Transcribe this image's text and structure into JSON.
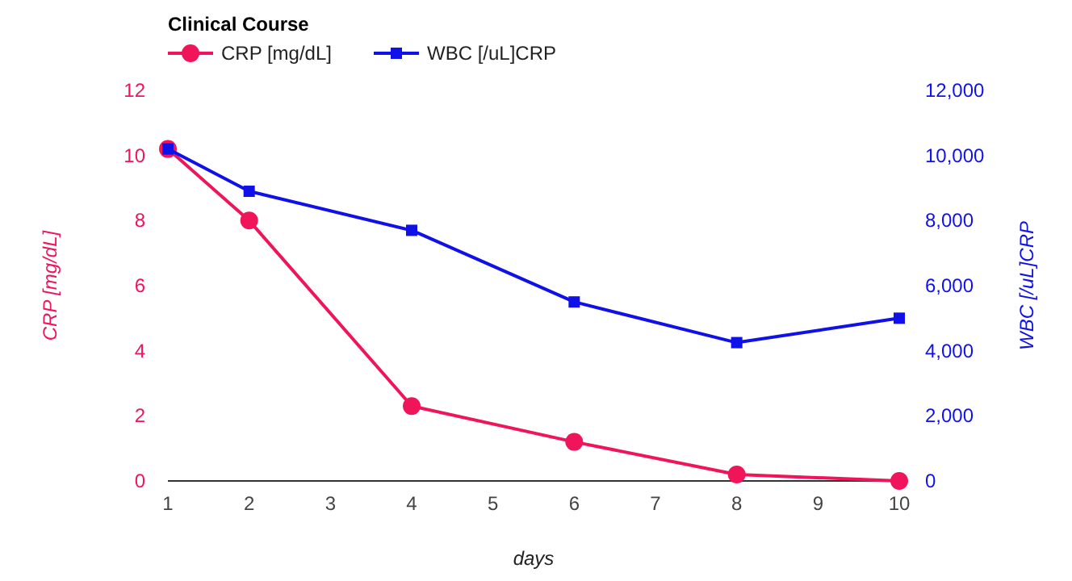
{
  "chart_data": {
    "type": "line",
    "title": "Clinical Course",
    "xlabel": "days",
    "ylabel": "CRP [mg/dL]",
    "y2label": "WBC [/uL]CRP",
    "x": [
      1,
      2,
      4,
      6,
      8,
      10
    ],
    "xlim": [
      1,
      10
    ],
    "xticks": [
      1,
      2,
      3,
      4,
      5,
      6,
      7,
      8,
      9,
      10
    ],
    "ylim": [
      0,
      12
    ],
    "yticks": [
      0,
      2,
      4,
      6,
      8,
      10,
      12
    ],
    "y2lim": [
      0,
      12000
    ],
    "y2ticks": [
      {
        "value": 0,
        "label": "0"
      },
      {
        "value": 2000,
        "label": "2,000"
      },
      {
        "value": 4000,
        "label": "4,000"
      },
      {
        "value": 6000,
        "label": "6,000"
      },
      {
        "value": 8000,
        "label": "8,000"
      },
      {
        "value": 10000,
        "label": "10,000"
      },
      {
        "value": 12000,
        "label": "12,000"
      }
    ],
    "legend": "top left",
    "grid": false,
    "series": [
      {
        "name": "CRP [mg/dL]",
        "color": "#f0145a",
        "marker": "circle",
        "values": [
          10.2,
          8,
          2.3,
          1.2,
          0.2,
          0
        ]
      },
      {
        "name": "WBC [/uL]CRP",
        "color": "#1010e8",
        "marker": "square",
        "axis": "y2",
        "values": [
          10200,
          8900,
          7700,
          5500,
          4250,
          5000
        ]
      }
    ]
  }
}
